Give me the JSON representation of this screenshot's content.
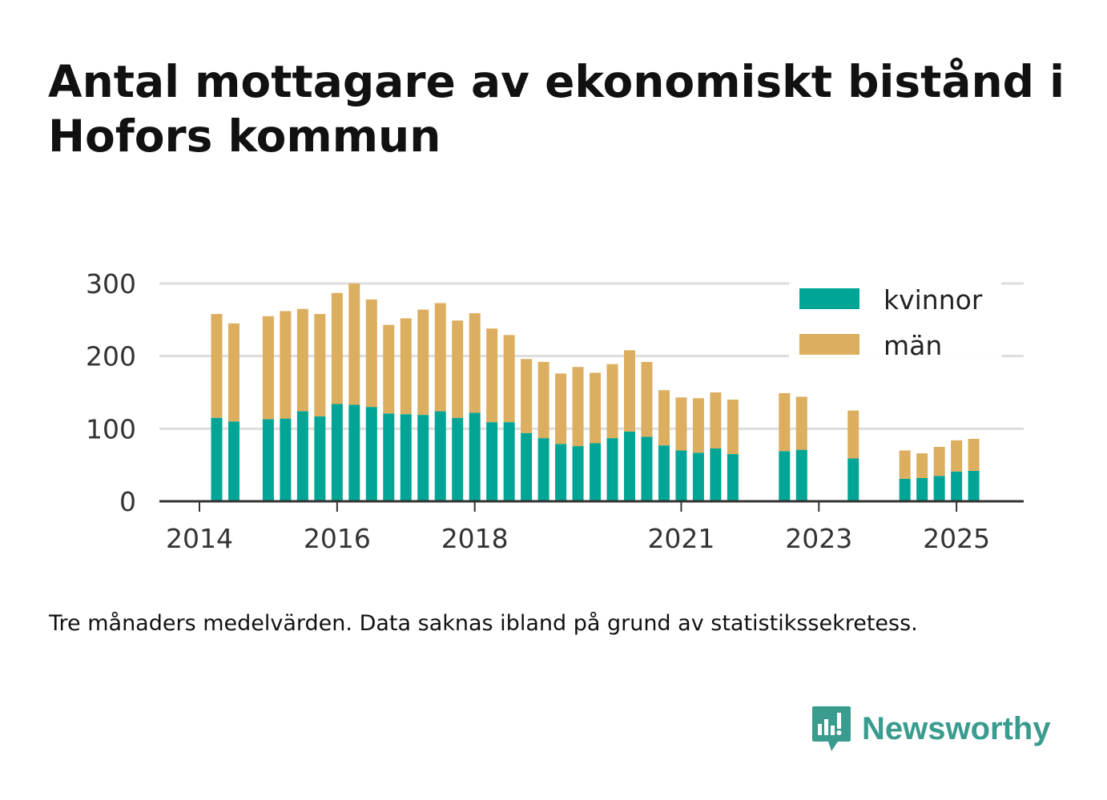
{
  "title": "Antal mottagare av ekonomiskt bistånd i Hofors kommun",
  "note": "Tre månaders medelvärden. Data saknas ibland på grund av statistikssekretess.",
  "brand": {
    "name": "Newsworthy",
    "color": "#3a9b8f"
  },
  "colors": {
    "kvinnor": "#00a596",
    "man": "#dcae5f",
    "grid": "#dddddd",
    "axis": "#333333"
  },
  "chart_data": {
    "type": "bar",
    "stacked": true,
    "ylim": [
      0,
      300
    ],
    "yticks": [
      0,
      100,
      200,
      300
    ],
    "xticks": [
      "2014",
      "2016",
      "2018",
      "2021",
      "2023",
      "2025"
    ],
    "legend": {
      "placement": "top-right",
      "entries": [
        "kvinnor",
        "män"
      ]
    },
    "x_range": [
      "2014-01",
      "2025-12"
    ],
    "x": [
      "2014-04",
      "2014-07",
      "2015-01",
      "2015-04",
      "2015-07",
      "2015-10",
      "2016-01",
      "2016-04",
      "2016-07",
      "2016-10",
      "2017-01",
      "2017-04",
      "2017-07",
      "2017-10",
      "2018-01",
      "2018-04",
      "2018-07",
      "2018-10",
      "2019-01",
      "2019-04",
      "2019-07",
      "2019-10",
      "2020-01",
      "2020-04",
      "2020-07",
      "2020-10",
      "2021-01",
      "2021-04",
      "2021-07",
      "2021-10",
      "2022-07",
      "2022-10",
      "2023-07",
      "2024-04",
      "2024-07",
      "2024-10",
      "2025-01",
      "2025-04"
    ],
    "series": [
      {
        "name": "kvinnor",
        "values": [
          115,
          110,
          113,
          114,
          124,
          117,
          134,
          133,
          130,
          121,
          120,
          119,
          124,
          115,
          122,
          109,
          109,
          94,
          87,
          79,
          76,
          80,
          87,
          96,
          89,
          77,
          70,
          67,
          73,
          65,
          69,
          71,
          59,
          31,
          32,
          35,
          41,
          42
        ]
      },
      {
        "name": "män",
        "values": [
          143,
          135,
          142,
          148,
          141,
          141,
          153,
          167,
          148,
          122,
          132,
          145,
          149,
          134,
          137,
          129,
          120,
          102,
          105,
          97,
          109,
          97,
          102,
          112,
          103,
          76,
          73,
          75,
          77,
          75,
          80,
          73,
          66,
          39,
          34,
          40,
          43,
          44
        ]
      }
    ]
  }
}
